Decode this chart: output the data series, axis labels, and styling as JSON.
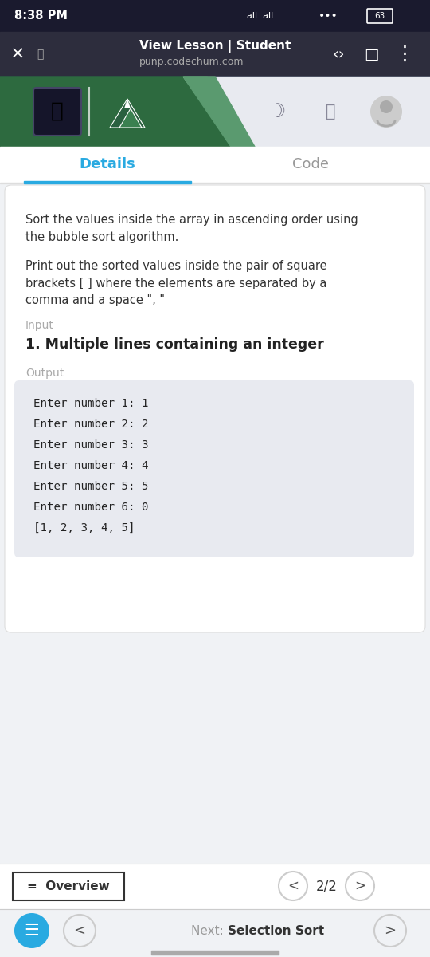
{
  "status_bar_time": "8:38 PM",
  "status_bar_bg": "#1a1a2e",
  "nav_bar_bg": "#2d2d3d",
  "nav_title": "View Lesson | Student",
  "nav_url": "punp.codechum.com",
  "tab_details": "Details",
  "tab_code": "Code",
  "tab_active_color": "#29aae1",
  "tab_inactive_color": "#999999",
  "tab_underline_color": "#29aae1",
  "body_bg": "#f0f2f5",
  "card_bg": "#ffffff",
  "card_text_color": "#333333",
  "desc_text1": "Sort the values inside the array in ascending order using\nthe bubble sort algorithm.",
  "desc_text2": "Print out the sorted values inside the pair of square\nbrackets [ ] where the elements are separated by a\ncomma and a space \", \"",
  "input_label": "Input",
  "input_label_color": "#aaaaaa",
  "input_heading": "1. Multiple lines containing an integer",
  "input_heading_color": "#222222",
  "output_label": "Output",
  "output_label_color": "#aaaaaa",
  "output_box_bg": "#e8eaf0",
  "output_lines": [
    "Enter number 1: 1",
    "Enter number 2: 2",
    "Enter number 3: 3",
    "Enter number 4: 4",
    "Enter number 5: 5",
    "Enter number 6: 0",
    "[1, 2, 3, 4, 5]"
  ],
  "output_text_color": "#222222",
  "bottom_bar_bg": "#ffffff",
  "overview_btn_text": "=  Overview",
  "pagination_text": "2/2",
  "pagination_color": "#333333",
  "footer_bg": "#f0f2f5",
  "footer_next_label": "Next: ",
  "footer_next_value": "Selection Sort",
  "footer_next_color": "#333333",
  "footer_btn_bg": "#29aae1",
  "phone_bg": "#1c1c2e",
  "bottom_home_bar": "#aaaaaa",
  "header_green": "#2d6a3f",
  "header_blue": "#1a3a5c",
  "header_light": "#e8eaf0"
}
